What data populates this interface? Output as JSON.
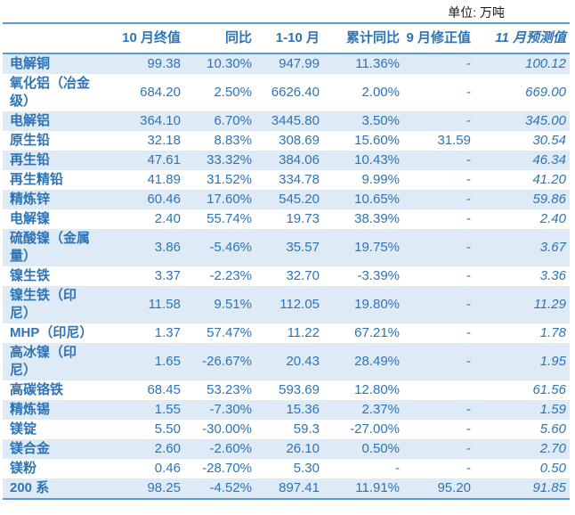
{
  "unit_note": "单位: 万吨",
  "colors": {
    "text_blue": "#2E74B5",
    "stripe_blue": "#DEEAF6",
    "border_blue": "#5B9BD5"
  },
  "chart_data": {
    "type": "table",
    "title": "",
    "unit": "万吨",
    "columns": [
      "",
      "10 月终值",
      "同比",
      "1-10 月",
      "累计同比",
      "9 月修正值",
      "11 月预测值"
    ],
    "rows": [
      {
        "label": "电解铜",
        "values": [
          "99.38",
          "10.30%",
          "947.99",
          "11.36%",
          "-",
          "100.12"
        ]
      },
      {
        "label": "氧化铝（冶金级）",
        "values": [
          "684.20",
          "2.50%",
          "6626.40",
          "2.00%",
          "-",
          "669.00"
        ]
      },
      {
        "label": "电解铝",
        "values": [
          "364.10",
          "6.70%",
          "3445.80",
          "3.50%",
          "-",
          "345.00"
        ]
      },
      {
        "label": "原生铅",
        "values": [
          "32.18",
          "8.83%",
          "308.69",
          "15.60%",
          "31.59",
          "30.54"
        ]
      },
      {
        "label": "再生铅",
        "values": [
          "47.61",
          "33.32%",
          "384.06",
          "10.43%",
          "-",
          "46.34"
        ]
      },
      {
        "label": "再生精铅",
        "values": [
          "41.89",
          "31.52%",
          "334.78",
          "9.99%",
          "-",
          "41.20"
        ]
      },
      {
        "label": "精炼锌",
        "values": [
          "60.46",
          "17.60%",
          "545.20",
          "10.65%",
          "-",
          "59.86"
        ]
      },
      {
        "label": "电解镍",
        "values": [
          "2.40",
          "55.74%",
          "19.73",
          "38.39%",
          "-",
          "2.40"
        ]
      },
      {
        "label": "硫酸镍（金属量）",
        "values": [
          "3.86",
          "-5.46%",
          "35.57",
          "19.75%",
          "-",
          "3.67"
        ]
      },
      {
        "label": "镍生铁",
        "values": [
          "3.37",
          "-2.23%",
          "32.70",
          "-3.39%",
          "-",
          "3.36"
        ]
      },
      {
        "label": "镍生铁（印尼）",
        "values": [
          "11.58",
          "9.51%",
          "112.05",
          "19.80%",
          "-",
          "11.29"
        ]
      },
      {
        "label": "MHP（印尼）",
        "values": [
          "1.37",
          "57.47%",
          "11.22",
          "67.21%",
          "-",
          "1.78"
        ]
      },
      {
        "label": "高冰镍（印尼）",
        "values": [
          "1.65",
          "-26.67%",
          "20.43",
          "28.49%",
          "-",
          "1.95"
        ]
      },
      {
        "label": "高碳铬铁",
        "values": [
          "68.45",
          "53.23%",
          "593.69",
          "12.80%",
          "",
          "61.56"
        ]
      },
      {
        "label": "精炼锡",
        "values": [
          "1.55",
          "-7.30%",
          "15.36",
          "2.37%",
          "-",
          "1.59"
        ]
      },
      {
        "label": "镁锭",
        "values": [
          "5.50",
          "-30.00%",
          "59.3",
          "-27.00%",
          "-",
          "5.60"
        ]
      },
      {
        "label": "镁合金",
        "values": [
          "2.60",
          "-2.60%",
          "26.10",
          "0.50%",
          "-",
          "2.70"
        ]
      },
      {
        "label": "镁粉",
        "values": [
          "0.46",
          "-28.70%",
          "5.30",
          "-",
          "-",
          "0.50"
        ]
      },
      {
        "label": "200 系",
        "values": [
          "98.25",
          "-4.52%",
          "897.41",
          "11.91%",
          "95.20",
          "91.85"
        ]
      }
    ]
  }
}
